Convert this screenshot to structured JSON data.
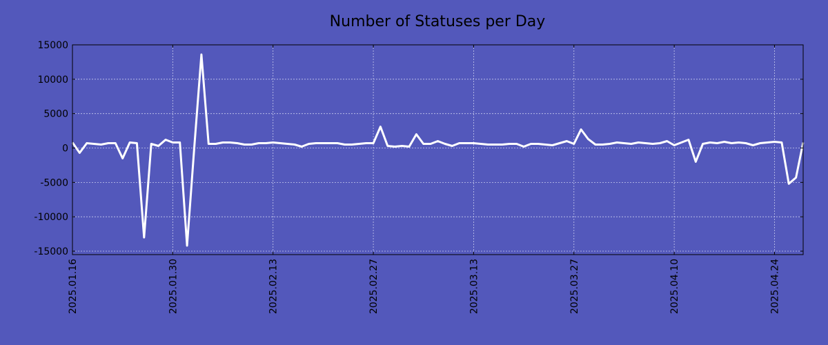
{
  "page": {
    "background": "#5358bb"
  },
  "chart_data": {
    "type": "line",
    "title": "Number of Statuses per Day",
    "xlabel": "",
    "ylabel": "",
    "ylim": [
      -15500,
      15000
    ],
    "xlim": [
      "2025-01-16",
      "2025-05-08"
    ],
    "grid": true,
    "line_color": "#ffffff",
    "y_ticks": [
      15000,
      10000,
      5000,
      0,
      -5000,
      -10000,
      -15000
    ],
    "y_tick_labels": [
      "15000",
      "10000",
      "5000",
      "0",
      "-5000",
      "-10000",
      "-15000"
    ],
    "x_ticks": [
      "2025-01-16",
      "2025-01-30",
      "2025-02-13",
      "2025-02-27",
      "2025-03-13",
      "2025-03-27",
      "2025-04-10",
      "2025-04-24"
    ],
    "x_tick_labels": [
      "2025.01.16",
      "2025.01.30",
      "2025.02.13",
      "2025.02.27",
      "2025.03.13",
      "2025.03.27",
      "2025.04.10",
      "2025.04.24"
    ],
    "series": [
      {
        "x": [
          "2025-01-16",
          "2025-01-17",
          "2025-01-18",
          "2025-01-19",
          "2025-01-20",
          "2025-01-21",
          "2025-01-22",
          "2025-01-23",
          "2025-01-24",
          "2025-01-25",
          "2025-01-26",
          "2025-01-27",
          "2025-01-28",
          "2025-01-29",
          "2025-01-30",
          "2025-01-31",
          "2025-02-01",
          "2025-02-02",
          "2025-02-03",
          "2025-02-04",
          "2025-02-05",
          "2025-02-06",
          "2025-02-07",
          "2025-02-08",
          "2025-02-09",
          "2025-02-10",
          "2025-02-11",
          "2025-02-12",
          "2025-02-13",
          "2025-02-14",
          "2025-02-15",
          "2025-02-16",
          "2025-02-17",
          "2025-02-18",
          "2025-02-19",
          "2025-02-20",
          "2025-02-21",
          "2025-02-22",
          "2025-02-23",
          "2025-02-24",
          "2025-02-25",
          "2025-02-26",
          "2025-02-27",
          "2025-02-28",
          "2025-03-01",
          "2025-03-02",
          "2025-03-03",
          "2025-03-04",
          "2025-03-05",
          "2025-03-06",
          "2025-03-07",
          "2025-03-08",
          "2025-03-09",
          "2025-03-10",
          "2025-03-11",
          "2025-03-12",
          "2025-03-13",
          "2025-03-14",
          "2025-03-15",
          "2025-03-16",
          "2025-03-17",
          "2025-03-18",
          "2025-03-19",
          "2025-03-20",
          "2025-03-21",
          "2025-03-22",
          "2025-03-23",
          "2025-03-24",
          "2025-03-25",
          "2025-03-26",
          "2025-03-27",
          "2025-03-28",
          "2025-03-29",
          "2025-03-30",
          "2025-03-31",
          "2025-04-01",
          "2025-04-02",
          "2025-04-03",
          "2025-04-04",
          "2025-04-05",
          "2025-04-06",
          "2025-04-07",
          "2025-04-08",
          "2025-04-09",
          "2025-04-10",
          "2025-04-11",
          "2025-04-12",
          "2025-04-13",
          "2025-04-14",
          "2025-04-15",
          "2025-04-16",
          "2025-04-17",
          "2025-04-18",
          "2025-04-19",
          "2025-04-20",
          "2025-04-21",
          "2025-04-22",
          "2025-04-23",
          "2025-04-24",
          "2025-04-25",
          "2025-04-26",
          "2025-04-27",
          "2025-04-28"
        ],
        "values": [
          800,
          -700,
          700,
          600,
          500,
          700,
          700,
          -1500,
          800,
          700,
          -13000,
          600,
          300,
          1200,
          800,
          800,
          -14200,
          0,
          13600,
          600,
          600,
          800,
          800,
          700,
          500,
          500,
          700,
          700,
          800,
          700,
          600,
          500,
          200,
          600,
          700,
          700,
          700,
          700,
          500,
          500,
          600,
          700,
          700,
          3100,
          300,
          200,
          300,
          200,
          2000,
          600,
          600,
          1000,
          600,
          300,
          700,
          700,
          700,
          600,
          500,
          500,
          500,
          600,
          600,
          200,
          600,
          600,
          500,
          400,
          700,
          1000,
          600,
          2700,
          1300,
          500,
          500,
          600,
          800,
          700,
          600,
          800,
          700,
          600,
          700,
          1000,
          400,
          800,
          1200,
          -2000,
          600,
          800,
          700,
          900,
          700,
          800,
          700,
          400,
          700,
          800,
          900,
          800,
          -5200,
          -4300,
          800
        ]
      }
    ]
  }
}
